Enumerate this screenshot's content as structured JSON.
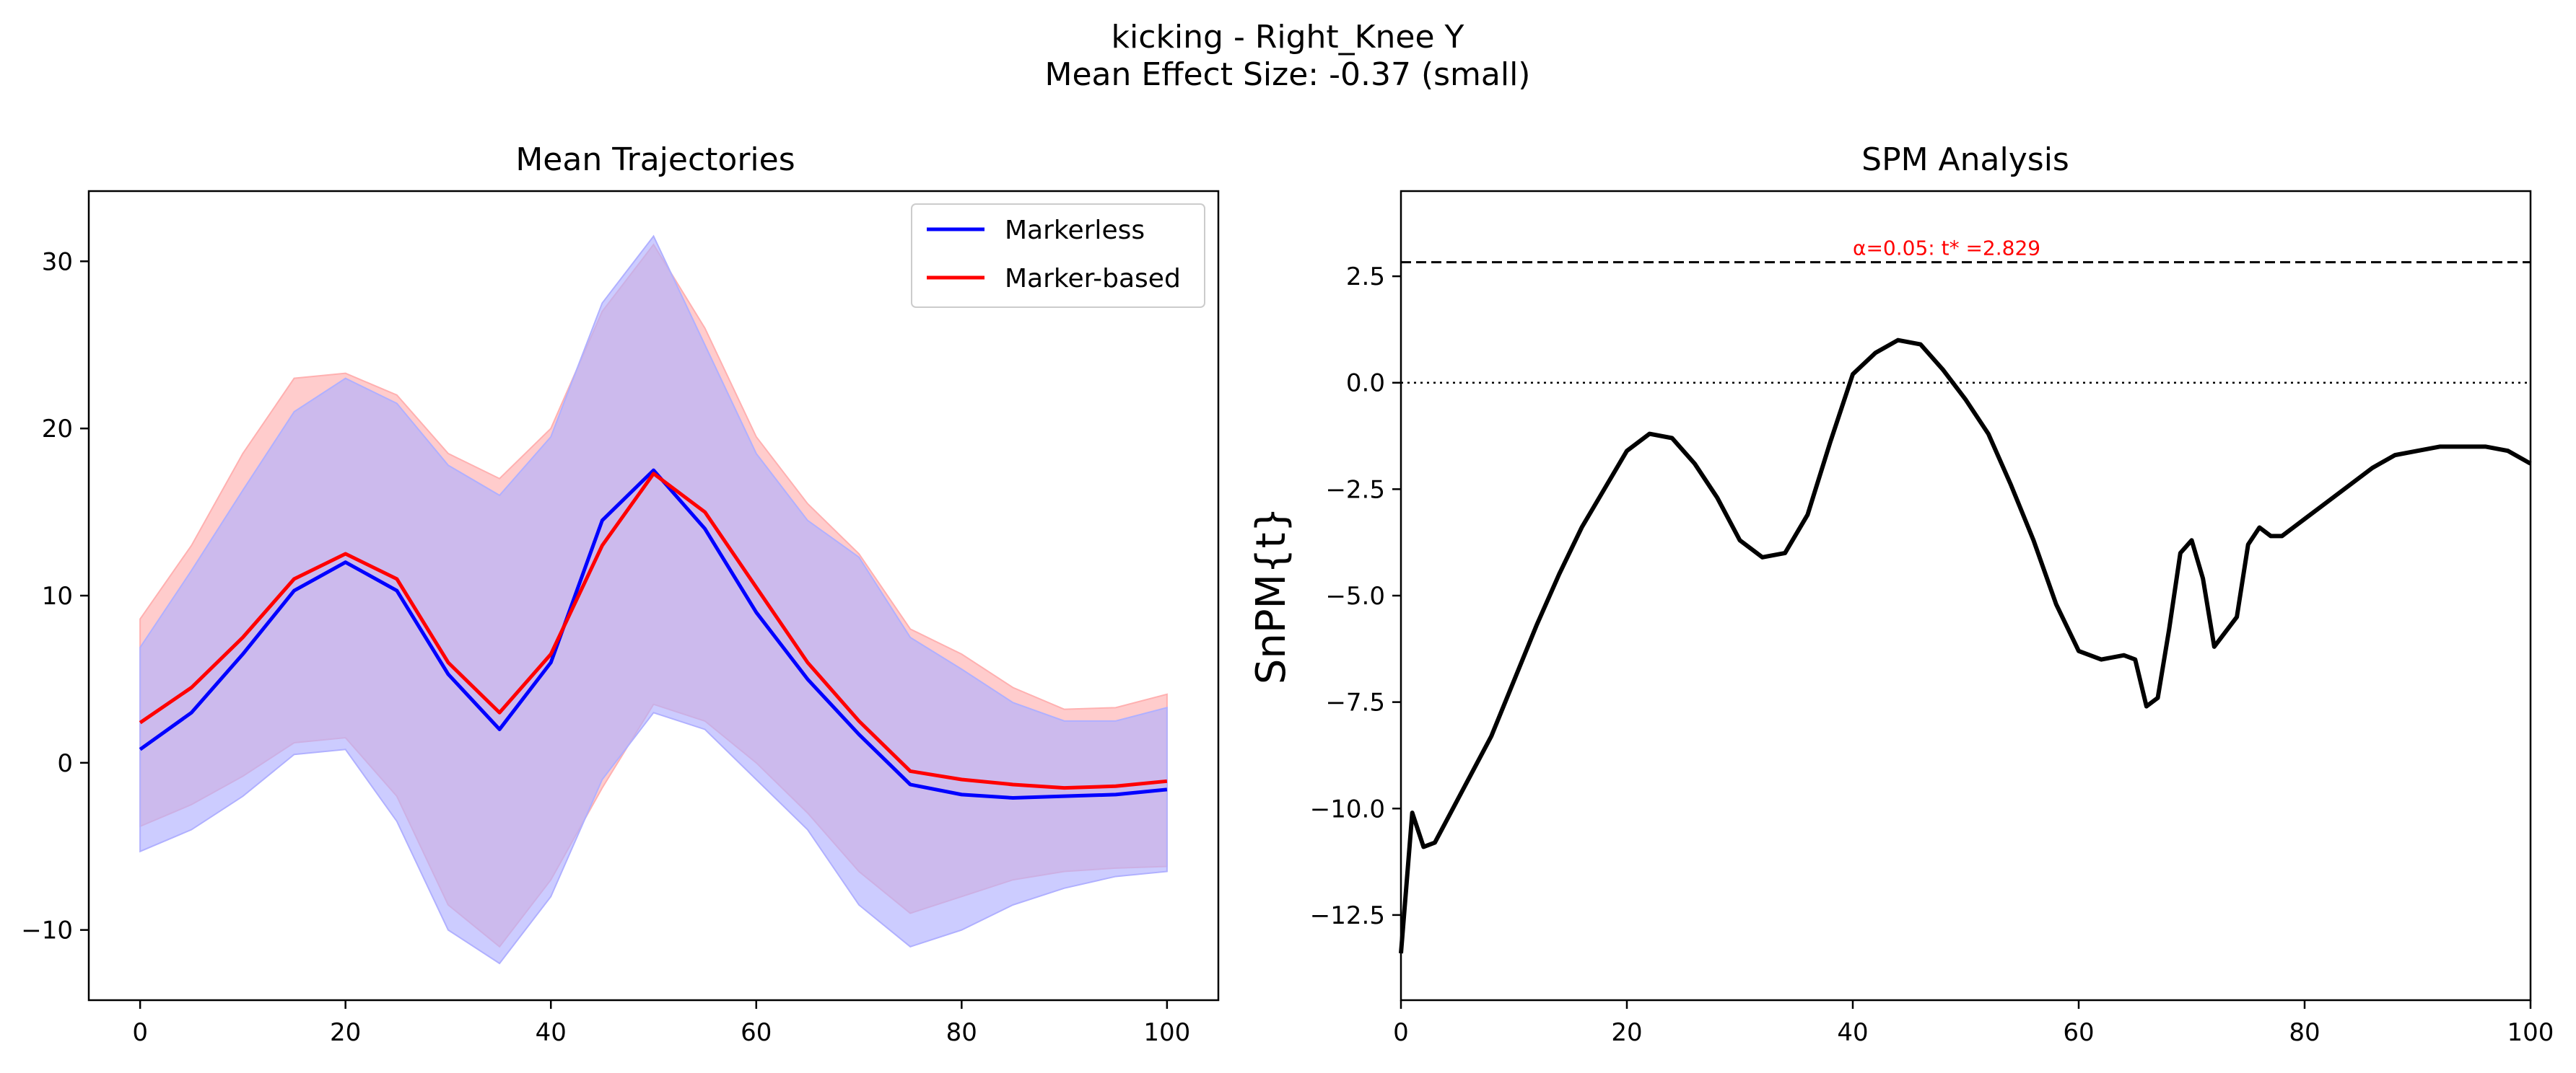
{
  "figure": {
    "title_line1": "kicking - Right_Knee Y",
    "title_line2": "Mean Effect Size: -0.37 (small)"
  },
  "chart_data": [
    {
      "type": "line",
      "title": "Mean Trajectories",
      "xlabel": "",
      "ylabel": "",
      "xlim": [
        -5,
        105
      ],
      "ylim": [
        -14.2,
        34.2
      ],
      "xticks": [
        0,
        20,
        40,
        60,
        80,
        100
      ],
      "yticks": [
        -10,
        0,
        10,
        20,
        30
      ],
      "grid": false,
      "legend_position": "top-right",
      "x": [
        0,
        5,
        10,
        15,
        20,
        25,
        30,
        35,
        40,
        45,
        50,
        55,
        60,
        65,
        70,
        75,
        80,
        85,
        90,
        95,
        100
      ],
      "series": [
        {
          "name": "Markerless",
          "color": "#0000ff",
          "band_color": "#b0b0ff",
          "values": [
            0.8,
            3.0,
            6.5,
            10.3,
            12.0,
            10.3,
            5.3,
            2.0,
            6.0,
            14.5,
            17.5,
            14.0,
            9.0,
            5.0,
            1.7,
            -1.3,
            -1.9,
            -2.1,
            -2.0,
            -1.9,
            -1.6
          ],
          "upper": [
            6.9,
            11.5,
            16.3,
            21.0,
            23.0,
            21.5,
            17.8,
            16.0,
            19.5,
            27.5,
            31.5,
            25.0,
            18.5,
            14.5,
            12.3,
            7.5,
            5.6,
            3.6,
            2.5,
            2.5,
            3.3
          ],
          "lower": [
            -5.3,
            -4.0,
            -2.0,
            0.5,
            0.8,
            -3.5,
            -10.0,
            -12.0,
            -8.0,
            -1.0,
            3.0,
            2.0,
            -1.0,
            -4.0,
            -8.5,
            -11.0,
            -10.0,
            -8.5,
            -7.5,
            -6.8,
            -6.5
          ]
        },
        {
          "name": "Marker-based",
          "color": "#ff0000",
          "band_color": "#ffb0b0",
          "values": [
            2.4,
            4.5,
            7.5,
            11.0,
            12.5,
            11.0,
            6.0,
            3.0,
            6.5,
            13.0,
            17.3,
            15.0,
            10.5,
            6.0,
            2.5,
            -0.5,
            -1.0,
            -1.3,
            -1.5,
            -1.4,
            -1.1
          ],
          "upper": [
            8.6,
            13.0,
            18.5,
            23.0,
            23.3,
            22.0,
            18.5,
            17.0,
            20.0,
            27.0,
            31.0,
            26.0,
            19.5,
            15.5,
            12.5,
            8.0,
            6.5,
            4.5,
            3.2,
            3.3,
            4.1
          ],
          "lower": [
            -3.8,
            -2.5,
            -0.8,
            1.2,
            1.5,
            -2.0,
            -8.5,
            -11.0,
            -7.0,
            -1.5,
            3.5,
            2.5,
            0.0,
            -3.0,
            -6.5,
            -9.0,
            -8.0,
            -7.0,
            -6.5,
            -6.3,
            -6.2
          ]
        }
      ]
    },
    {
      "type": "line",
      "title": "SPM Analysis",
      "xlabel": "",
      "ylabel": "SnPM{t}",
      "xlim": [
        0,
        100
      ],
      "ylim": [
        -14.5,
        4.5
      ],
      "xticks": [
        0,
        20,
        40,
        60,
        80,
        100
      ],
      "yticks": [
        -12.5,
        -10.0,
        -7.5,
        -5.0,
        -2.5,
        0.0,
        2.5
      ],
      "grid": false,
      "threshold": 2.829,
      "threshold_label": "α=0.05:  t* =2.829",
      "zero_line": 0,
      "series": [
        {
          "name": "",
          "color": "#000000",
          "x": [
            0,
            1,
            2,
            3,
            4,
            6,
            8,
            10,
            12,
            14,
            16,
            18,
            20,
            22,
            24,
            26,
            28,
            30,
            32,
            34,
            36,
            38,
            40,
            42,
            44,
            46,
            48,
            50,
            52,
            54,
            56,
            58,
            60,
            62,
            64,
            65,
            66,
            67,
            68,
            69,
            70,
            71,
            72,
            74,
            75,
            76,
            77,
            78,
            79,
            80,
            82,
            84,
            86,
            88,
            90,
            92,
            94,
            96,
            98,
            100
          ],
          "values": [
            -13.4,
            -10.1,
            -10.9,
            -10.8,
            -10.3,
            -9.3,
            -8.3,
            -7.0,
            -5.7,
            -4.5,
            -3.4,
            -2.5,
            -1.6,
            -1.2,
            -1.3,
            -1.9,
            -2.7,
            -3.7,
            -4.1,
            -4.0,
            -3.1,
            -1.4,
            0.2,
            0.7,
            1.0,
            0.9,
            0.3,
            -0.4,
            -1.2,
            -2.4,
            -3.7,
            -5.2,
            -6.3,
            -6.5,
            -6.4,
            -6.5,
            -7.6,
            -7.4,
            -5.8,
            -4.0,
            -3.7,
            -4.6,
            -6.2,
            -5.5,
            -3.8,
            -3.4,
            -3.6,
            -3.6,
            -3.4,
            -3.2,
            -2.8,
            -2.4,
            -2.0,
            -1.7,
            -1.6,
            -1.5,
            -1.5,
            -1.5,
            -1.6,
            -1.9
          ]
        }
      ]
    }
  ]
}
